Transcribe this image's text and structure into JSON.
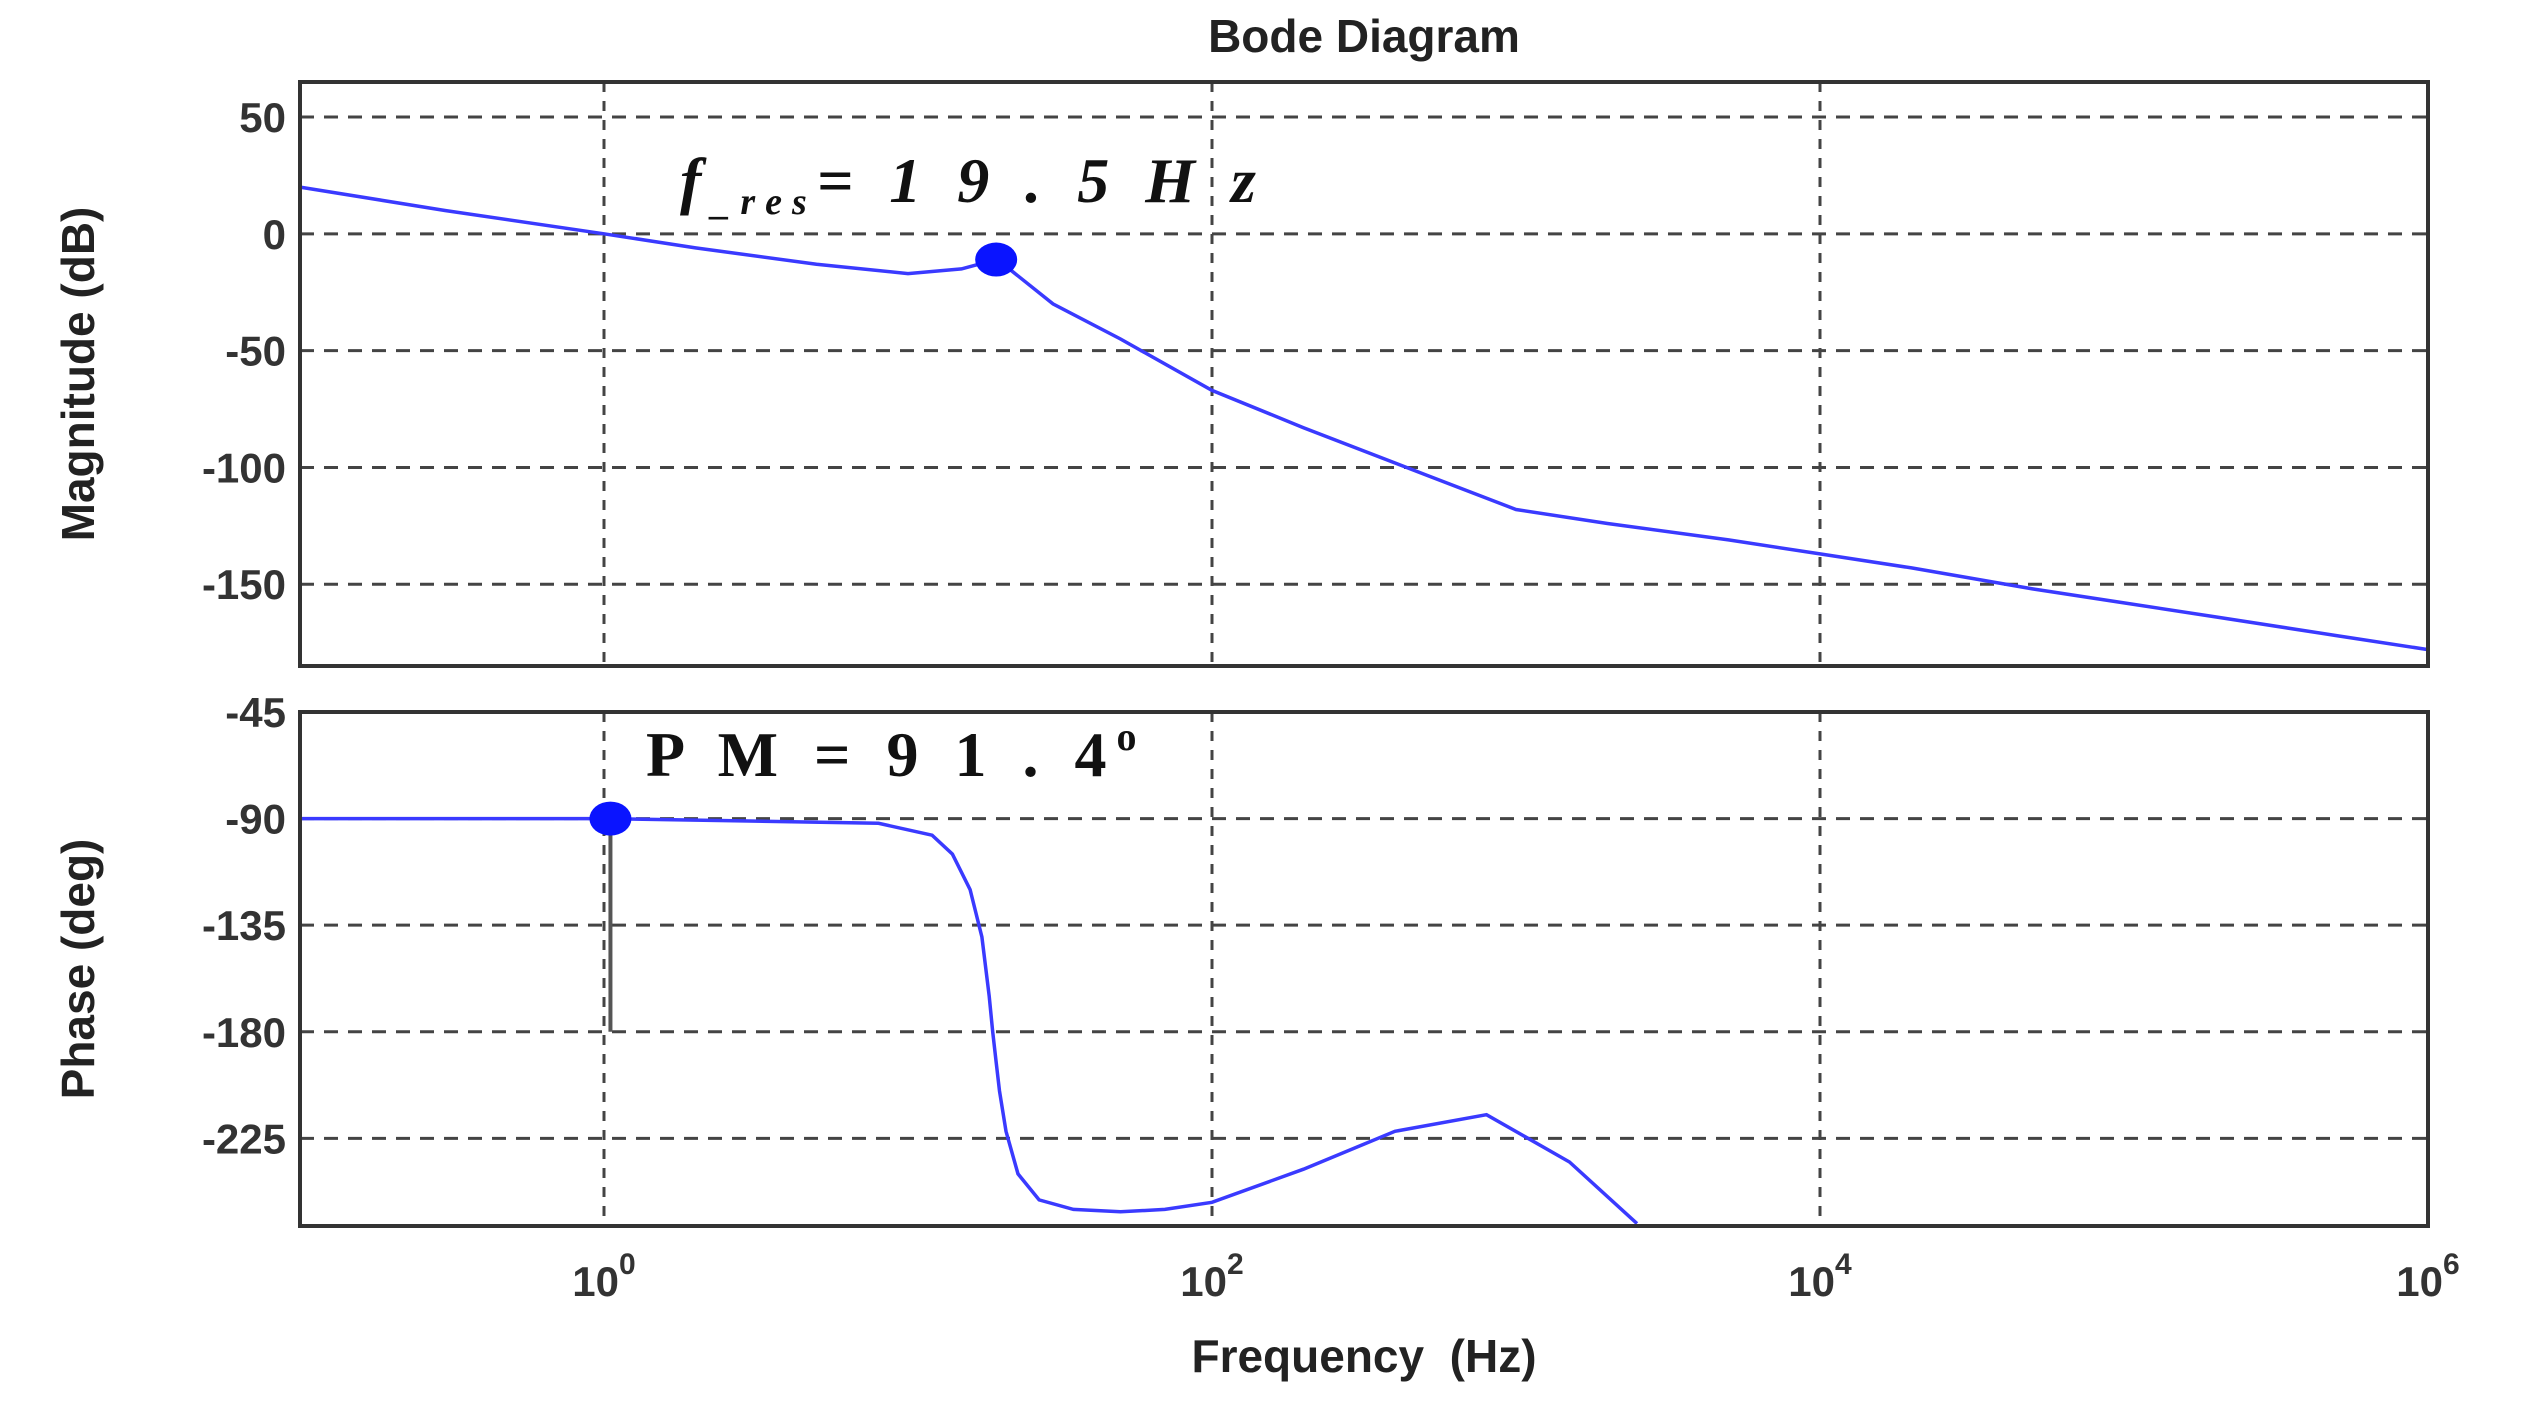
{
  "figure": {
    "title": "Bode Diagram",
    "xlabel": "Frequency  (Hz)",
    "colors": {
      "series": "#3a3aff",
      "marker": "#0a14ff",
      "grid": "#444444",
      "axes": "#333333",
      "stem": "#555555"
    }
  },
  "chart_data": [
    {
      "type": "line",
      "panel": "magnitude",
      "ylabel": "Magnitude (dB)",
      "x_scale": "log",
      "xlim": [
        0.1,
        1000000
      ],
      "ylim": [
        -185,
        65
      ],
      "yticks": [
        50,
        0,
        -50,
        -100,
        -150
      ],
      "ytick_labels": [
        "50",
        "0",
        "-50",
        "-100",
        "-150"
      ],
      "grid": true,
      "series": [
        {
          "x": [
            0.1,
            0.3,
            1,
            2,
            5,
            10,
            15,
            19.5,
            22,
            30,
            50,
            100,
            200,
            500,
            1000,
            2000,
            5000,
            10000,
            20000,
            50000,
            100000,
            200000,
            500000,
            1000000
          ],
          "y": [
            20,
            10,
            0,
            -6,
            -13,
            -17,
            -15,
            -11,
            -16,
            -30,
            -45,
            -67,
            -83,
            -103,
            -118,
            -124,
            -131,
            -137,
            -143,
            -152,
            -158,
            -164,
            -172,
            -178
          ]
        }
      ],
      "markers": [
        {
          "x": 19.5,
          "y": -11
        }
      ],
      "annotation": {
        "main": "f",
        "sub": "_res",
        "value": "= 1 9 . 5 H z",
        "x": 19.5
      }
    },
    {
      "type": "line",
      "panel": "phase",
      "ylabel": "Phase (deg)",
      "x_scale": "log",
      "xlim": [
        0.1,
        1000000
      ],
      "ylim": [
        -262,
        -45
      ],
      "yticks": [
        -45,
        -90,
        -135,
        -180,
        -225
      ],
      "ytick_labels": [
        "-45",
        "-90",
        "-135",
        "-180",
        "-225"
      ],
      "xticks": [
        1,
        100,
        10000,
        1000000
      ],
      "xtick_labels": [
        {
          "base": "10",
          "exp": "0"
        },
        {
          "base": "10",
          "exp": "2"
        },
        {
          "base": "10",
          "exp": "4"
        },
        {
          "base": "10",
          "exp": "6"
        }
      ],
      "grid": true,
      "series": [
        {
          "x": [
            0.1,
            1,
            3,
            8,
            12,
            14,
            16,
            17.5,
            18.5,
            19,
            19.5,
            20,
            21,
            23,
            27,
            35,
            50,
            70,
            100,
            200,
            400,
            800,
            1500,
            2500
          ],
          "y": [
            -90,
            -90,
            -91,
            -92,
            -97,
            -105,
            -120,
            -140,
            -165,
            -180,
            -193,
            -205,
            -222,
            -240,
            -251,
            -255,
            -256,
            -255,
            -252,
            -238,
            -222,
            -215,
            -235,
            -261
          ]
        }
      ],
      "markers": [
        {
          "x": 1.05,
          "y": -90
        }
      ],
      "stem": {
        "x": 1.05,
        "y_from": -90,
        "y_to": -180
      },
      "annotation": {
        "text": "P M = 9 1 . 4",
        "degree": "o",
        "x": 1.05
      }
    }
  ]
}
